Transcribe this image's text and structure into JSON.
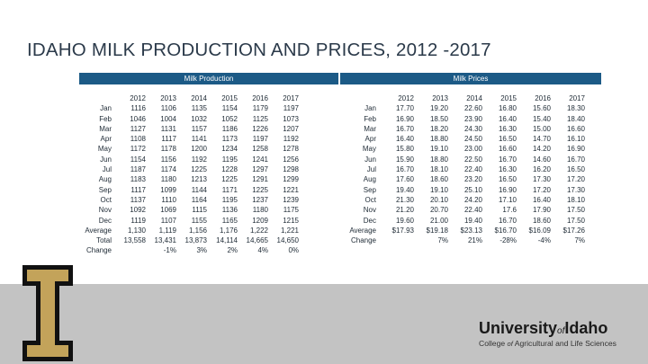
{
  "title": "IDAHO MILK PRODUCTION AND PRICES, 2012 -2017",
  "production": {
    "header": "Milk Production",
    "years": [
      "2012",
      "2013",
      "2014",
      "2015",
      "2016",
      "2017"
    ],
    "rows": [
      {
        "label": "Jan",
        "values": [
          "1116",
          "1106",
          "1135",
          "1154",
          "1179",
          "1197"
        ]
      },
      {
        "label": "Feb",
        "values": [
          "1046",
          "1004",
          "1032",
          "1052",
          "1125",
          "1073"
        ]
      },
      {
        "label": "Mar",
        "values": [
          "1127",
          "1131",
          "1157",
          "1186",
          "1226",
          "1207"
        ]
      },
      {
        "label": "Apr",
        "values": [
          "1108",
          "1117",
          "1141",
          "1173",
          "1197",
          "1192"
        ]
      },
      {
        "label": "May",
        "values": [
          "1172",
          "1178",
          "1200",
          "1234",
          "1258",
          "1278"
        ]
      },
      {
        "label": "Jun",
        "values": [
          "1154",
          "1156",
          "1192",
          "1195",
          "1241",
          "1256"
        ]
      },
      {
        "label": "Jul",
        "values": [
          "1187",
          "1174",
          "1225",
          "1228",
          "1297",
          "1298"
        ]
      },
      {
        "label": "Aug",
        "values": [
          "1183",
          "1180",
          "1213",
          "1225",
          "1291",
          "1299"
        ]
      },
      {
        "label": "Sep",
        "values": [
          "1117",
          "1099",
          "1144",
          "1171",
          "1225",
          "1221"
        ]
      },
      {
        "label": "Oct",
        "values": [
          "1137",
          "1110",
          "1164",
          "1195",
          "1237",
          "1239"
        ]
      },
      {
        "label": "Nov",
        "values": [
          "1092",
          "1069",
          "1115",
          "1136",
          "1180",
          "1175"
        ]
      },
      {
        "label": "Dec",
        "values": [
          "1119",
          "1107",
          "1155",
          "1165",
          "1209",
          "1215"
        ]
      },
      {
        "label": "Average",
        "values": [
          "1,130",
          "1,119",
          "1,156",
          "1,176",
          "1,222",
          "1,221"
        ]
      },
      {
        "label": "Total",
        "values": [
          "13,558",
          "13,431",
          "13,873",
          "14,114",
          "14,665",
          "14,650"
        ]
      },
      {
        "label": "Change",
        "values": [
          "",
          "-1%",
          "3%",
          "2%",
          "4%",
          "0%"
        ]
      }
    ]
  },
  "prices": {
    "header": "Milk Prices",
    "years": [
      "2012",
      "2013",
      "2014",
      "2015",
      "2016",
      "2017"
    ],
    "rows": [
      {
        "label": "Jan",
        "values": [
          "17.70",
          "19.20",
          "22.60",
          "16.80",
          "15.60",
          "18.30"
        ]
      },
      {
        "label": "Feb",
        "values": [
          "16.90",
          "18.50",
          "23.90",
          "16.40",
          "15.40",
          "18.40"
        ]
      },
      {
        "label": "Mar",
        "values": [
          "16.70",
          "18.20",
          "24.30",
          "16.30",
          "15.00",
          "16.60"
        ]
      },
      {
        "label": "Apr",
        "values": [
          "16.40",
          "18.80",
          "24.50",
          "16.50",
          "14.70",
          "16.10"
        ]
      },
      {
        "label": "May",
        "values": [
          "15.80",
          "19.10",
          "23.00",
          "16.60",
          "14.20",
          "16.90"
        ]
      },
      {
        "label": "Jun",
        "values": [
          "15.90",
          "18.80",
          "22.50",
          "16.70",
          "14.60",
          "16.70"
        ]
      },
      {
        "label": "Jul",
        "values": [
          "16.70",
          "18.10",
          "22.40",
          "16.30",
          "16.20",
          "16.50"
        ]
      },
      {
        "label": "Aug",
        "values": [
          "17.60",
          "18.60",
          "23.20",
          "16.50",
          "17.30",
          "17.20"
        ]
      },
      {
        "label": "Sep",
        "values": [
          "19.40",
          "19.10",
          "25.10",
          "16.90",
          "17.20",
          "17.30"
        ]
      },
      {
        "label": "Oct",
        "values": [
          "21.30",
          "20.10",
          "24.20",
          "17.10",
          "16.40",
          "18.10"
        ]
      },
      {
        "label": "Nov",
        "values": [
          "21.20",
          "20.70",
          "22.40",
          "17.6",
          "17.90",
          "17.50"
        ]
      },
      {
        "label": "Dec",
        "values": [
          "19.60",
          "21.00",
          "19.40",
          "16.70",
          "18.60",
          "17.50"
        ]
      },
      {
        "label": "Average",
        "values": [
          "$17.93",
          "$19.18",
          "$23.13",
          "$16.70",
          "$16.09",
          "$17.26"
        ]
      },
      {
        "label": "Change",
        "values": [
          "",
          "7%",
          "21%",
          "-28%",
          "-4%",
          "7%"
        ]
      }
    ]
  },
  "branding": {
    "logo_letter": "I",
    "logo_colors": {
      "gold": "#c3a35a",
      "black": "#111111"
    },
    "wordmark_main": "University",
    "wordmark_of": "of",
    "wordmark_place": "Idaho",
    "college_pre": "College",
    "college_of": "of",
    "college_post": "Agricultural and Life Sciences"
  },
  "colors": {
    "header_bar": "#1c5a86",
    "bottom_band": "#c3c3c3",
    "title": "#2b3a4a"
  }
}
